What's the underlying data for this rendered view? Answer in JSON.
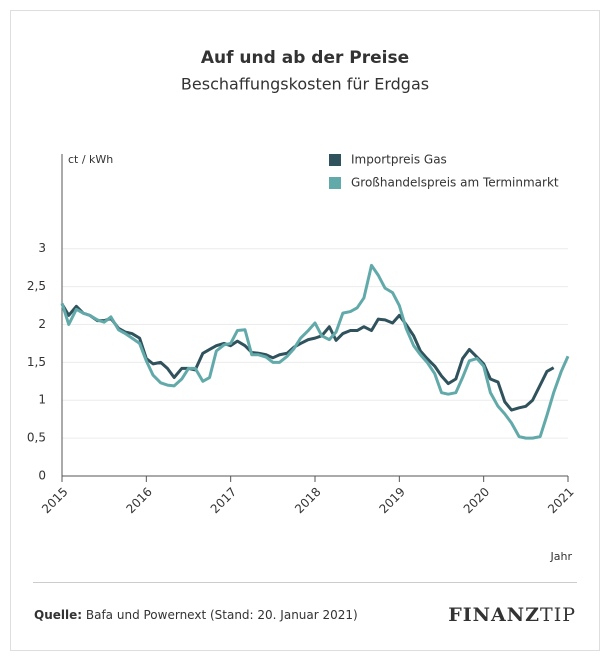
{
  "chart_data": {
    "type": "line",
    "title": "Auf und ab der Preise",
    "subtitle": "Beschaffungskosten für Erdgas",
    "y_label": "ct / kWh",
    "x_label": "Jahr",
    "source_label": "Quelle:",
    "source": "Bafa und Powernext (Stand: 20. Januar 2021)",
    "logo": [
      "FINANZ",
      "TIP"
    ],
    "x": [
      2015,
      2015.08,
      2015.17,
      2015.25,
      2015.33,
      2015.42,
      2015.5,
      2015.58,
      2015.67,
      2015.75,
      2015.83,
      2015.92,
      2016,
      2016.08,
      2016.17,
      2016.25,
      2016.33,
      2016.42,
      2016.5,
      2016.58,
      2016.67,
      2016.75,
      2016.83,
      2016.92,
      2017,
      2017.08,
      2017.17,
      2017.25,
      2017.33,
      2017.42,
      2017.5,
      2017.58,
      2017.67,
      2017.75,
      2017.83,
      2017.92,
      2018,
      2018.08,
      2018.17,
      2018.25,
      2018.33,
      2018.42,
      2018.5,
      2018.58,
      2018.67,
      2018.75,
      2018.83,
      2018.92,
      2019,
      2019.08,
      2019.17,
      2019.25,
      2019.33,
      2019.42,
      2019.5,
      2019.58,
      2019.67,
      2019.75,
      2019.83,
      2019.92,
      2020,
      2020.08,
      2020.17,
      2020.25,
      2020.33,
      2020.42,
      2020.5,
      2020.58,
      2020.67,
      2020.75,
      2020.83,
      2020.92,
      2021
    ],
    "series": [
      {
        "name": "Importpreis Gas",
        "color": "#2f525c",
        "values": [
          2.27,
          2.12,
          2.24,
          2.15,
          2.12,
          2.05,
          2.05,
          2.08,
          1.95,
          1.9,
          1.88,
          1.82,
          1.55,
          1.48,
          1.5,
          1.42,
          1.3,
          1.42,
          1.42,
          1.4,
          1.62,
          1.67,
          1.72,
          1.75,
          1.72,
          1.78,
          1.72,
          1.63,
          1.62,
          1.6,
          1.56,
          1.6,
          1.62,
          1.7,
          1.75,
          1.8,
          1.82,
          1.85,
          1.97,
          1.79,
          1.88,
          1.92,
          1.92,
          1.97,
          1.92,
          2.07,
          2.06,
          2.02,
          2.12,
          2.0,
          1.85,
          1.65,
          1.55,
          1.45,
          1.32,
          1.22,
          1.28,
          1.55,
          1.67,
          1.57,
          1.48,
          1.28,
          1.24,
          0.98,
          0.87,
          0.9,
          0.92,
          1.0,
          1.2,
          1.38,
          1.43,
          null,
          null
        ]
      },
      {
        "name": "Großhandelspreis am Terminmarkt",
        "color": "#62aaa9",
        "values": [
          2.28,
          2.0,
          2.2,
          2.15,
          2.12,
          2.06,
          2.03,
          2.1,
          1.93,
          1.88,
          1.82,
          1.75,
          1.52,
          1.33,
          1.23,
          1.2,
          1.19,
          1.28,
          1.42,
          1.42,
          1.25,
          1.3,
          1.65,
          1.73,
          1.75,
          1.92,
          1.93,
          1.6,
          1.6,
          1.57,
          1.5,
          1.5,
          1.58,
          1.68,
          1.82,
          1.92,
          2.02,
          1.85,
          1.8,
          1.9,
          2.15,
          2.17,
          2.22,
          2.35,
          2.78,
          2.65,
          2.48,
          2.42,
          2.25,
          1.95,
          1.72,
          1.6,
          1.5,
          1.35,
          1.1,
          1.08,
          1.1,
          1.3,
          1.52,
          1.55,
          1.45,
          1.1,
          0.92,
          0.82,
          0.7,
          0.52,
          0.5,
          0.5,
          0.52,
          0.8,
          1.1,
          1.38,
          1.58
        ]
      }
    ],
    "xlim": [
      2015,
      2021
    ],
    "xticks": [
      2015,
      2016,
      2017,
      2018,
      2019,
      2020,
      2021
    ],
    "ylim": [
      0,
      4.25
    ],
    "yticks": [
      0,
      {
        "value": 0.5,
        "label": "0,5"
      },
      1,
      {
        "value": 1.5,
        "label": "1,5"
      },
      2,
      {
        "value": 2.5,
        "label": "2,5"
      },
      3
    ],
    "grid": true,
    "legend": "top-right"
  }
}
